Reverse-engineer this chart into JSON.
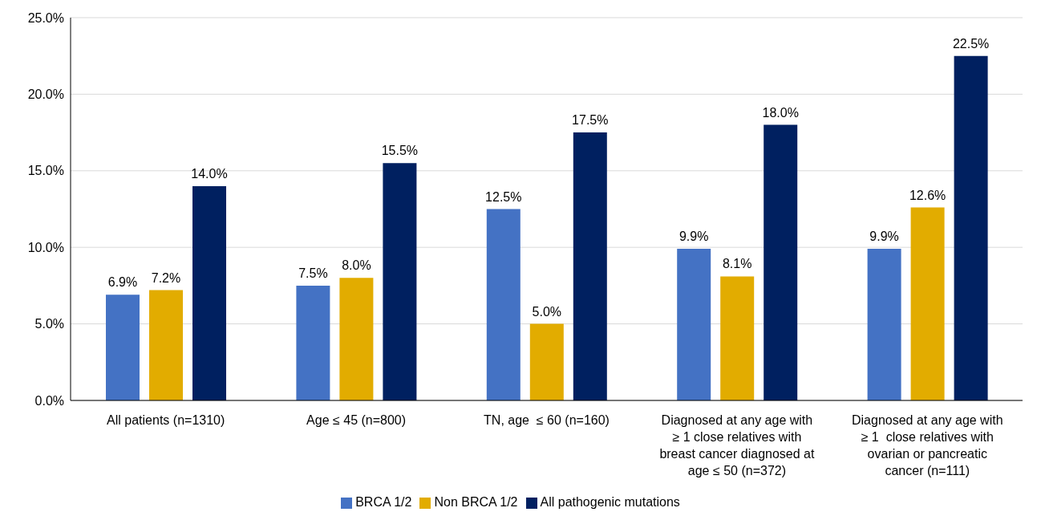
{
  "chart_data": {
    "type": "bar",
    "categories": [
      "All patients (n=1310)",
      "Age ≤ 45 (n=800)",
      "TN, age  ≤ 60 (n=160)",
      "Diagnosed at any age with ≥ 1 close relatives with breast cancer diagnosed at age ≤ 50 (n=372)",
      "Diagnosed at any age with ≥ 1  close relatives with ovarian or pancreatic cancer (n=111)"
    ],
    "series": [
      {
        "name": "BRCA 1/2",
        "color": "#4472c4",
        "values": [
          6.9,
          7.5,
          12.5,
          9.9,
          9.9
        ],
        "value_labels": [
          "6.9%",
          "7.5%",
          "12.5%",
          "9.9%",
          "9.9%"
        ]
      },
      {
        "name": "Non BRCA 1/2",
        "color": "#e2ac00",
        "values": [
          7.2,
          8.0,
          5.0,
          8.1,
          12.6
        ],
        "value_labels": [
          "7.2%",
          "8.0%",
          "5.0%",
          "8.1%",
          "12.6%"
        ]
      },
      {
        "name": "All pathogenic mutations",
        "color": "#002060",
        "values": [
          14.0,
          15.5,
          17.5,
          18.0,
          22.5
        ],
        "value_labels": [
          "14.0%",
          "15.5%",
          "17.5%",
          "18.0%",
          "22.5%"
        ]
      }
    ],
    "ylim": [
      0,
      25
    ],
    "yticks": [
      {
        "value": 0,
        "label": "0.0%"
      },
      {
        "value": 5,
        "label": "5.0%"
      },
      {
        "value": 10,
        "label": "10.0%"
      },
      {
        "value": 15,
        "label": "15.0%"
      },
      {
        "value": 20,
        "label": "20.0%"
      },
      {
        "value": 25,
        "label": "25.0%"
      }
    ],
    "grid": "y",
    "legend": "bottom"
  }
}
